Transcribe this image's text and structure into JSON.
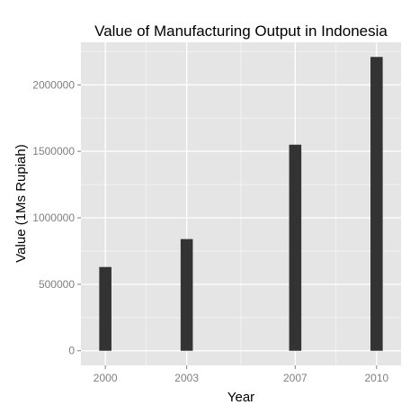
{
  "chart_data": {
    "type": "bar",
    "title": "Value of Manufacturing Output in Indonesia",
    "xlabel": "Year",
    "ylabel": "Value (1Ms Rupiah)",
    "x": [
      2000,
      2003,
      2007,
      2010
    ],
    "values": [
      630000,
      840000,
      1550000,
      2210000
    ],
    "xticks": [
      "2000",
      "2003",
      "2007",
      "2010"
    ],
    "yticks": [
      "0",
      "500000",
      "1000000",
      "1500000",
      "2000000"
    ],
    "xlim": [
      1999.1,
      2010.9
    ],
    "ylim": [
      -110000,
      2320000
    ],
    "grid": true,
    "colors": {
      "panel": "#e5e5e5",
      "grid_major": "#ffffff",
      "grid_minor": "#f2f2f2",
      "bar": "#333333",
      "tick": "#7f7f7f"
    }
  }
}
